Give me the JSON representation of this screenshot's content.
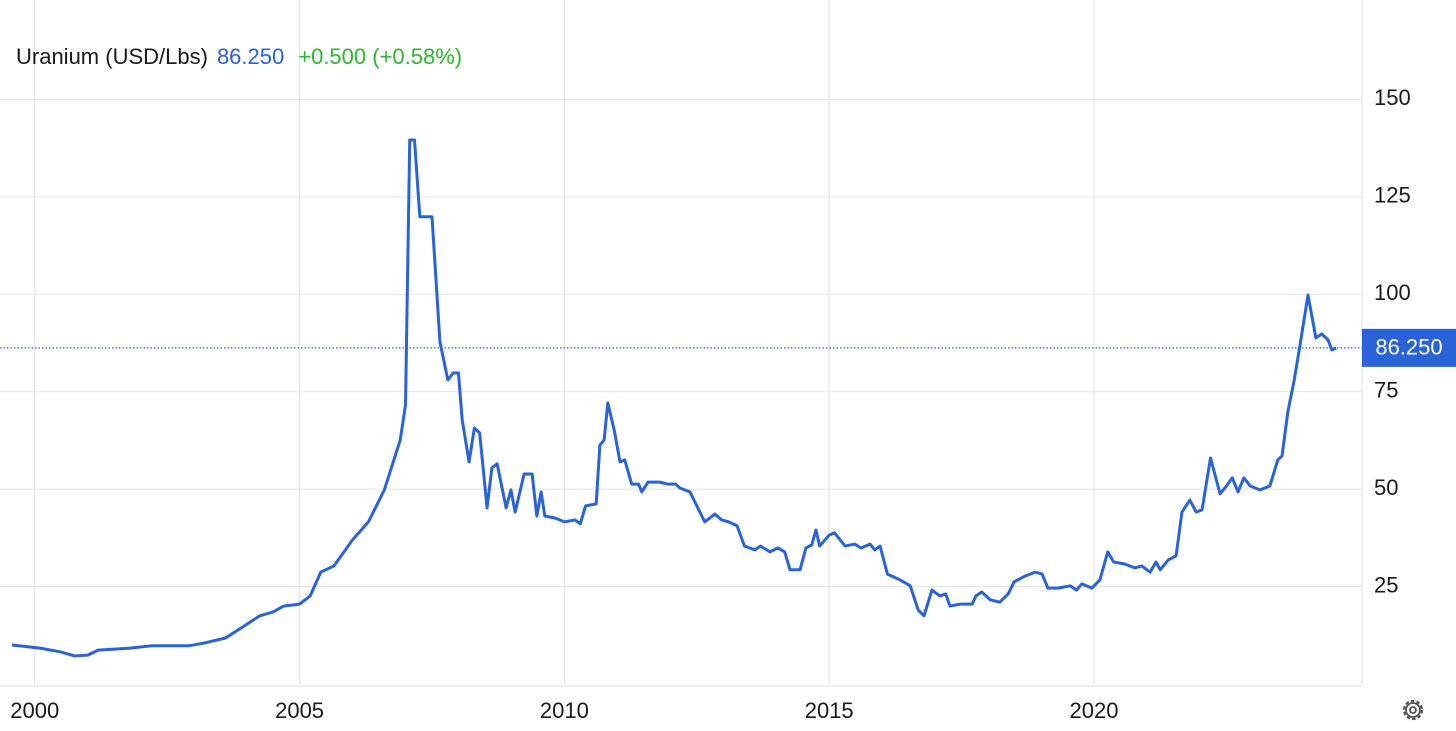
{
  "chart_data": {
    "type": "line",
    "title": "Uranium (USD/Lbs)",
    "price": "86.250",
    "change": "+0.500 (+0.58%)",
    "color": "#2a62d8",
    "change_color": "#2fb62f",
    "grid": true,
    "xlim": [
      1999.57,
      2025.06
    ],
    "ylim": [
      0,
      175
    ],
    "xticks": [
      2000,
      2005,
      2010,
      2015,
      2020
    ],
    "yticks": [
      25,
      50,
      75,
      100,
      125,
      150
    ],
    "price_line": {
      "value": 86.25,
      "label": "86.250"
    },
    "x": [
      1999.57,
      2000.1,
      2000.5,
      2000.75,
      2001.0,
      2001.2,
      2001.8,
      2002.2,
      2002.9,
      2003.2,
      2003.6,
      2003.9,
      2004.25,
      2004.5,
      2004.7,
      2005.0,
      2005.2,
      2005.4,
      2005.65,
      2006.0,
      2006.3,
      2006.6,
      2006.9,
      2007.0,
      2007.08,
      2007.17,
      2007.27,
      2007.5,
      2007.65,
      2007.8,
      2007.9,
      2008.0,
      2008.07,
      2008.2,
      2008.3,
      2008.4,
      2008.54,
      2008.63,
      2008.73,
      2008.9,
      2008.99,
      2009.07,
      2009.24,
      2009.39,
      2009.48,
      2009.56,
      2009.63,
      2009.82,
      2010.0,
      2010.2,
      2010.3,
      2010.4,
      2010.6,
      2010.67,
      2010.75,
      2010.82,
      2010.94,
      2011.05,
      2011.14,
      2011.27,
      2011.4,
      2011.46,
      2011.58,
      2011.8,
      2011.95,
      2012.1,
      2012.18,
      2012.37,
      2012.65,
      2012.84,
      2012.97,
      2013.1,
      2013.26,
      2013.4,
      2013.6,
      2013.7,
      2013.88,
      2014.03,
      2014.16,
      2014.26,
      2014.45,
      2014.56,
      2014.67,
      2014.75,
      2014.82,
      2015.0,
      2015.1,
      2015.3,
      2015.48,
      2015.6,
      2015.77,
      2015.86,
      2015.96,
      2016.1,
      2016.34,
      2016.53,
      2016.68,
      2016.79,
      2016.94,
      2017.09,
      2017.2,
      2017.28,
      2017.47,
      2017.7,
      2017.77,
      2017.88,
      2018.04,
      2018.22,
      2018.38,
      2018.49,
      2018.7,
      2018.89,
      2019.02,
      2019.13,
      2019.32,
      2019.55,
      2019.67,
      2019.77,
      2019.96,
      2020.11,
      2020.26,
      2020.37,
      2020.58,
      2020.77,
      2020.9,
      2021.06,
      2021.17,
      2021.25,
      2021.4,
      2021.55,
      2021.66,
      2021.81,
      2021.93,
      2022.04,
      2022.2,
      2022.38,
      2022.5,
      2022.61,
      2022.72,
      2022.83,
      2022.95,
      2023.13,
      2023.32,
      2023.47,
      2023.55,
      2023.66,
      2023.78,
      2023.89,
      2024.04,
      2024.19,
      2024.3,
      2024.42,
      2024.49,
      2024.57
    ],
    "values": [
      10.0,
      9.2,
      8.2,
      7.2,
      7.4,
      8.7,
      9.2,
      9.8,
      9.8,
      10.5,
      11.8,
      14.4,
      17.5,
      18.5,
      20.0,
      20.5,
      22.6,
      28.7,
      30.3,
      37.0,
      41.6,
      49.8,
      62.6,
      71.6,
      139.6,
      139.6,
      119.9,
      119.9,
      87.8,
      78.0,
      79.8,
      79.8,
      67.8,
      57.0,
      65.7,
      64.4,
      45.2,
      55.4,
      56.5,
      45.2,
      49.8,
      44.1,
      53.9,
      53.9,
      43.1,
      49.3,
      43.1,
      42.6,
      41.6,
      42.1,
      41.1,
      45.7,
      46.2,
      61.3,
      62.6,
      72.1,
      65.2,
      57.0,
      57.5,
      51.3,
      51.3,
      49.3,
      51.8,
      51.8,
      51.3,
      51.3,
      50.3,
      49.3,
      41.6,
      43.6,
      42.1,
      41.6,
      40.6,
      35.4,
      34.4,
      35.4,
      33.9,
      34.9,
      33.9,
      29.3,
      29.3,
      34.9,
      35.7,
      39.5,
      35.4,
      38.2,
      38.8,
      35.4,
      35.9,
      34.9,
      35.9,
      34.4,
      35.4,
      28.2,
      26.7,
      25.2,
      19.0,
      17.5,
      24.1,
      22.6,
      23.1,
      20.0,
      20.5,
      20.5,
      22.6,
      23.6,
      21.6,
      21.0,
      23.1,
      26.2,
      27.7,
      28.7,
      28.2,
      24.6,
      24.6,
      25.2,
      24.1,
      25.7,
      24.6,
      26.7,
      33.9,
      31.3,
      30.8,
      29.8,
      30.3,
      28.7,
      31.3,
      29.3,
      31.8,
      32.9,
      44.1,
      47.2,
      44.1,
      44.7,
      58.0,
      48.8,
      50.8,
      52.9,
      49.3,
      52.9,
      50.8,
      49.8,
      50.8,
      57.5,
      58.5,
      69.8,
      78.0,
      87.0,
      99.8,
      88.8,
      89.8,
      88.3,
      85.7,
      86.25
    ]
  }
}
